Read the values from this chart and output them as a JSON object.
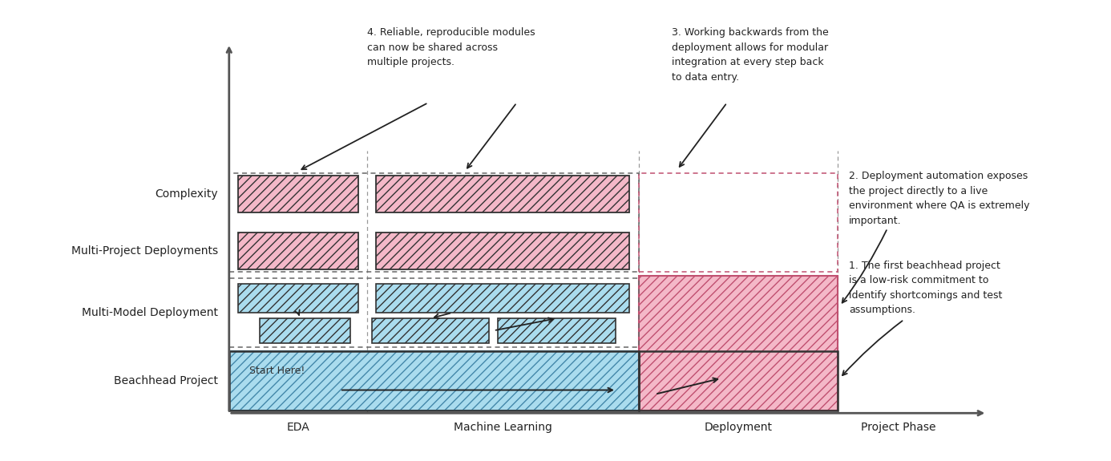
{
  "bg_color": "#ffffff",
  "axis_color": "#555555",
  "pink_fill": "#f4b8c8",
  "pink_edge": "#c05070",
  "blue_fill": "#aadcee",
  "blue_edge": "#4488aa",
  "dash_color": "#666666",
  "text_color": "#222222",
  "arrow_color": "#222222",
  "ylabel_complexity": "Complexity",
  "ylabel_beachhead": "Beachhead Project",
  "ylabel_multimodel": "Multi-Model Deployment",
  "ylabel_multiproject": "Multi-Project Deployments",
  "xlabel_eda": "EDA",
  "xlabel_ml": "Machine Learning",
  "xlabel_deploy": "Deployment",
  "xlabel_phase": "Project Phase",
  "annotation1": "1. The first beachhead project\nis a low-risk commitment to\nidentify shortcomings and test\nassumptions.",
  "annotation2": "2. Deployment automation exposes\nthe project directly to a live\nenvironment where QA is extremely\nimportant.",
  "annotation3": "3. Working backwards from the\ndeployment allows for modular\nintegration at every step back\nto data entry.",
  "annotation4": "4. Reliable, reproducible modules\ncan now be shared across\nmultiple projects.",
  "start_here": "Start Here!"
}
